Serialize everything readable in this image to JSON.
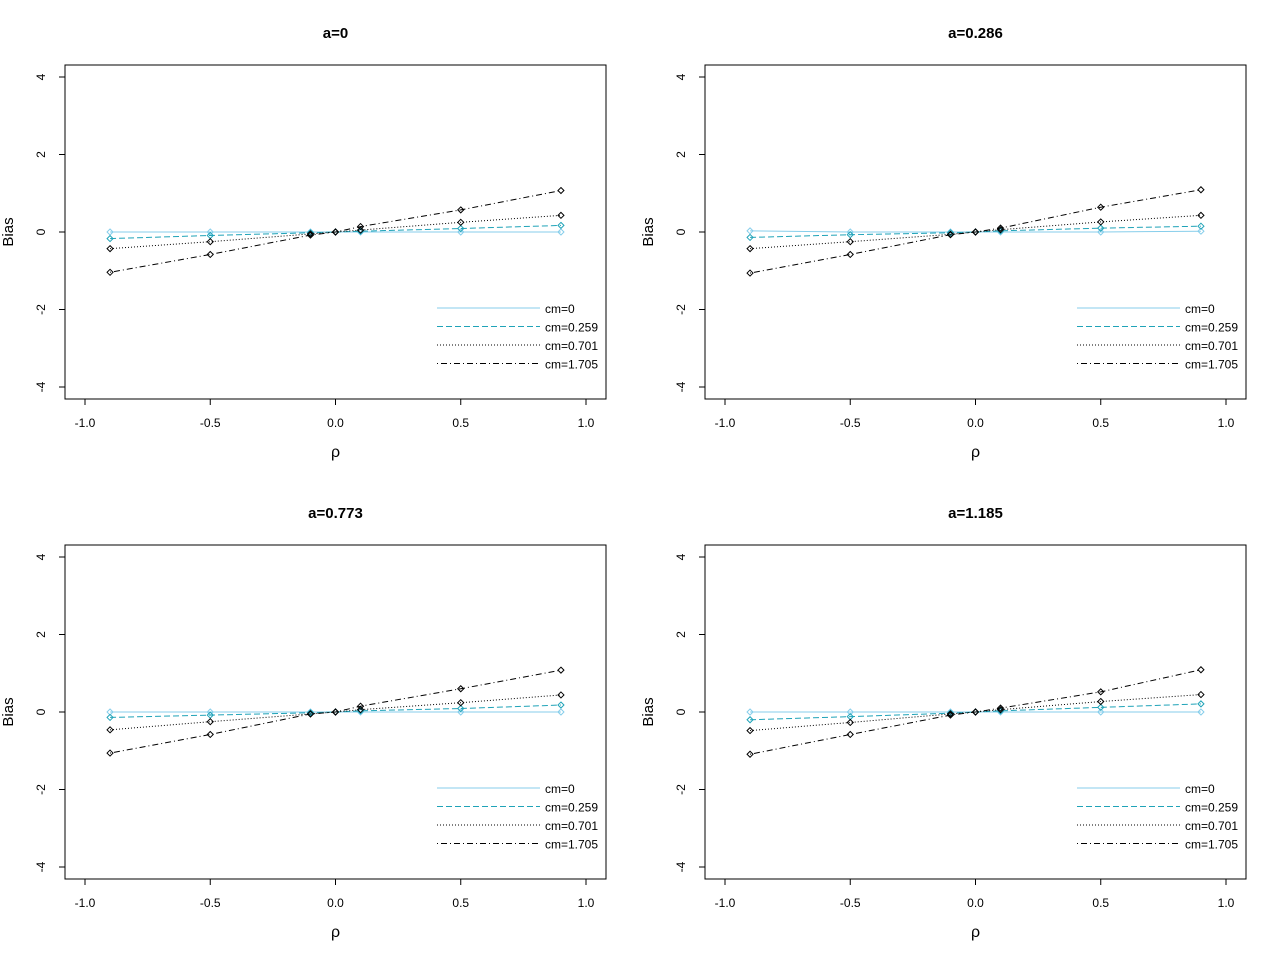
{
  "chart_data": [
    {
      "type": "line",
      "title": "a=0",
      "xlabel": "ρ",
      "ylabel": "Bias",
      "xlim": [
        -1.0,
        1.0
      ],
      "ylim": [
        -4,
        4
      ],
      "x_ticks": [
        "-1.0",
        "-0.5",
        "0.0",
        "0.5",
        "1.0"
      ],
      "y_ticks": [
        "-4",
        "-2",
        "0",
        "2",
        "4"
      ],
      "legend_position": "bottom-right",
      "x": [
        -0.9,
        -0.5,
        -0.1,
        0,
        0.1,
        0.5,
        0.9
      ],
      "series": [
        {
          "name": "cm=0",
          "color": "#87CEEB",
          "dash": "solid",
          "values": [
            0.0,
            0.0,
            0.0,
            0.0,
            0.0,
            0.0,
            0.0
          ]
        },
        {
          "name": "cm=0.259",
          "color": "#1FA3B8",
          "dash": "dashed",
          "values": [
            -0.17,
            -0.09,
            -0.02,
            0.0,
            0.02,
            0.09,
            0.17
          ]
        },
        {
          "name": "cm=0.701",
          "color": "#000000",
          "dash": "dotted",
          "values": [
            -0.43,
            -0.25,
            -0.05,
            0.0,
            0.05,
            0.25,
            0.43
          ]
        },
        {
          "name": "cm=1.705",
          "color": "#000000",
          "dash": "dotdash",
          "values": [
            -1.04,
            -0.58,
            -0.08,
            0.0,
            0.14,
            0.57,
            1.07
          ]
        }
      ]
    },
    {
      "type": "line",
      "title": "a=0.286",
      "xlabel": "ρ",
      "ylabel": "Bias",
      "xlim": [
        -1.0,
        1.0
      ],
      "ylim": [
        -4,
        4
      ],
      "x_ticks": [
        "-1.0",
        "-0.5",
        "0.0",
        "0.5",
        "1.0"
      ],
      "y_ticks": [
        "-4",
        "-2",
        "0",
        "2",
        "4"
      ],
      "legend_position": "bottom-right",
      "x": [
        -0.9,
        -0.5,
        -0.1,
        0,
        0.1,
        0.5,
        0.9
      ],
      "series": [
        {
          "name": "cm=0",
          "color": "#87CEEB",
          "dash": "solid",
          "values": [
            0.03,
            0.0,
            0.0,
            0.0,
            0.0,
            0.0,
            0.02
          ]
        },
        {
          "name": "cm=0.259",
          "color": "#1FA3B8",
          "dash": "dashed",
          "values": [
            -0.14,
            -0.07,
            -0.02,
            0.0,
            0.03,
            0.1,
            0.15
          ]
        },
        {
          "name": "cm=0.701",
          "color": "#000000",
          "dash": "dotted",
          "values": [
            -0.43,
            -0.25,
            -0.06,
            0.0,
            0.06,
            0.26,
            0.43
          ]
        },
        {
          "name": "cm=1.705",
          "color": "#000000",
          "dash": "dotdash",
          "values": [
            -1.06,
            -0.58,
            -0.07,
            0.0,
            0.1,
            0.64,
            1.09
          ]
        }
      ]
    },
    {
      "type": "line",
      "title": "a=0.773",
      "xlabel": "ρ",
      "ylabel": "Bias",
      "xlim": [
        -1.0,
        1.0
      ],
      "ylim": [
        -4,
        4
      ],
      "x_ticks": [
        "-1.0",
        "-0.5",
        "0.0",
        "0.5",
        "1.0"
      ],
      "y_ticks": [
        "-4",
        "-2",
        "0",
        "2",
        "4"
      ],
      "legend_position": "bottom-right",
      "x": [
        -0.9,
        -0.5,
        -0.1,
        0,
        0.1,
        0.5,
        0.9
      ],
      "series": [
        {
          "name": "cm=0",
          "color": "#87CEEB",
          "dash": "solid",
          "values": [
            0.0,
            0.0,
            0.0,
            0.0,
            0.0,
            0.0,
            0.0
          ]
        },
        {
          "name": "cm=0.259",
          "color": "#1FA3B8",
          "dash": "dashed",
          "values": [
            -0.14,
            -0.08,
            -0.02,
            0.0,
            0.03,
            0.09,
            0.18
          ]
        },
        {
          "name": "cm=0.701",
          "color": "#000000",
          "dash": "dotted",
          "values": [
            -0.46,
            -0.25,
            -0.05,
            0.0,
            0.06,
            0.24,
            0.44
          ]
        },
        {
          "name": "cm=1.705",
          "color": "#000000",
          "dash": "dotdash",
          "values": [
            -1.06,
            -0.58,
            -0.05,
            0.0,
            0.15,
            0.6,
            1.08
          ]
        }
      ]
    },
    {
      "type": "line",
      "title": "a=1.185",
      "xlabel": "ρ",
      "ylabel": "Bias",
      "xlim": [
        -1.0,
        1.0
      ],
      "ylim": [
        -4,
        4
      ],
      "x_ticks": [
        "-1.0",
        "-0.5",
        "0.0",
        "0.5",
        "1.0"
      ],
      "y_ticks": [
        "-4",
        "-2",
        "0",
        "2",
        "4"
      ],
      "legend_position": "bottom-right",
      "x": [
        -0.9,
        -0.5,
        -0.1,
        0,
        0.1,
        0.5,
        0.9
      ],
      "series": [
        {
          "name": "cm=0",
          "color": "#87CEEB",
          "dash": "solid",
          "values": [
            0.0,
            0.0,
            0.0,
            0.0,
            0.0,
            0.0,
            0.0
          ]
        },
        {
          "name": "cm=0.259",
          "color": "#1FA3B8",
          "dash": "dashed",
          "values": [
            -0.2,
            -0.12,
            -0.03,
            0.0,
            0.03,
            0.12,
            0.21
          ]
        },
        {
          "name": "cm=0.701",
          "color": "#000000",
          "dash": "dotted",
          "values": [
            -0.48,
            -0.27,
            -0.05,
            0.0,
            0.06,
            0.27,
            0.45
          ]
        },
        {
          "name": "cm=1.705",
          "color": "#000000",
          "dash": "dotdash",
          "values": [
            -1.09,
            -0.58,
            -0.08,
            0.0,
            0.1,
            0.52,
            1.09
          ]
        }
      ]
    }
  ]
}
